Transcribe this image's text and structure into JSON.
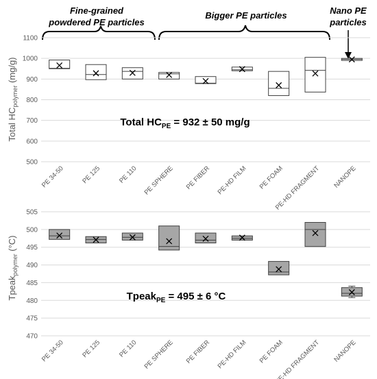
{
  "annotations": {
    "fine_grained": [
      "Fine-grained",
      "powdered PE particles"
    ],
    "bigger": "Bigger PE particles",
    "nano": [
      "Nano PE",
      "particles"
    ]
  },
  "chart_data": [
    {
      "type": "box",
      "ylabel_main": "Total HC",
      "ylabel_sub": "polymer",
      "ylabel_unit": " (mg/g)",
      "ylim": [
        500,
        1100
      ],
      "yticks": [
        500,
        600,
        700,
        800,
        900,
        1000,
        1100
      ],
      "grid": true,
      "box_fill": "#ffffff",
      "categories": [
        "PE 34-50",
        "PE 125",
        "PE 110",
        "PE SPHERE",
        "PE FIBER",
        "PE-HD FILM",
        "PE FOAM",
        "PE-HD FRAGMENT",
        "NANOPE"
      ],
      "boxes": [
        {
          "q1": 950,
          "median": 952,
          "q3": 992,
          "mean": 966
        },
        {
          "q1": 897,
          "median": 922,
          "q3": 970,
          "mean": 928
        },
        {
          "q1": 900,
          "median": 937,
          "q3": 955,
          "mean": 930
        },
        {
          "q1": 900,
          "median": 925,
          "q3": 932,
          "mean": 920
        },
        {
          "q1": 878,
          "median": 880,
          "q3": 912,
          "mean": 890
        },
        {
          "q1": 940,
          "median": 945,
          "q3": 958,
          "mean": 948
        },
        {
          "q1": 820,
          "median": 855,
          "q3": 937,
          "mean": 870
        },
        {
          "q1": 837,
          "median": 942,
          "q3": 1005,
          "mean": 927
        },
        {
          "q1": 990,
          "median": 995,
          "q3": 1000,
          "mean": 995
        }
      ],
      "stat": {
        "main": "Total HC",
        "sub": "PE",
        "rest": " = 932 ± 50 mg/g"
      }
    },
    {
      "type": "box",
      "ylabel_main": "Tpeak",
      "ylabel_sub": "polymer",
      "ylabel_unit": " (°C)",
      "ylim": [
        470,
        505
      ],
      "yticks": [
        470,
        475,
        480,
        485,
        490,
        495,
        500,
        505
      ],
      "grid": true,
      "box_fill": "#a6a6a6",
      "categories": [
        "PE 34-50",
        "PE 125",
        "PE 110",
        "PE SPHERE",
        "PE FIBER",
        "PE-HD FILM",
        "PE FOAM",
        "PE-HD FRAGMENT",
        "NANOPE"
      ],
      "boxes": [
        {
          "q1": 497.2,
          "median": 498.2,
          "q3": 500.0,
          "mean": 498.3
        },
        {
          "q1": 496.2,
          "median": 497.2,
          "q3": 498.0,
          "mean": 497.1
        },
        {
          "q1": 497.0,
          "median": 497.8,
          "q3": 499.0,
          "mean": 497.8
        },
        {
          "q1": 494.2,
          "median": 495.2,
          "q3": 501.0,
          "mean": 496.7
        },
        {
          "q1": 496.2,
          "median": 497.0,
          "q3": 499.0,
          "mean": 497.4
        },
        {
          "q1": 497.0,
          "median": 497.5,
          "q3": 498.2,
          "mean": 497.7
        },
        {
          "q1": 487.2,
          "median": 488.0,
          "q3": 491.0,
          "mean": 488.8
        },
        {
          "q1": 495.2,
          "median": 500.0,
          "q3": 502.0,
          "mean": 499.0
        },
        {
          "q1": 481.2,
          "median": 482.0,
          "q3": 483.6,
          "mean": 482.3,
          "whisker_low": 480.8,
          "whisker_high": 484.0
        }
      ],
      "stat": {
        "main": "Tpeak",
        "sub": "PE",
        "rest": " = 495 ± 6 °C"
      }
    }
  ]
}
